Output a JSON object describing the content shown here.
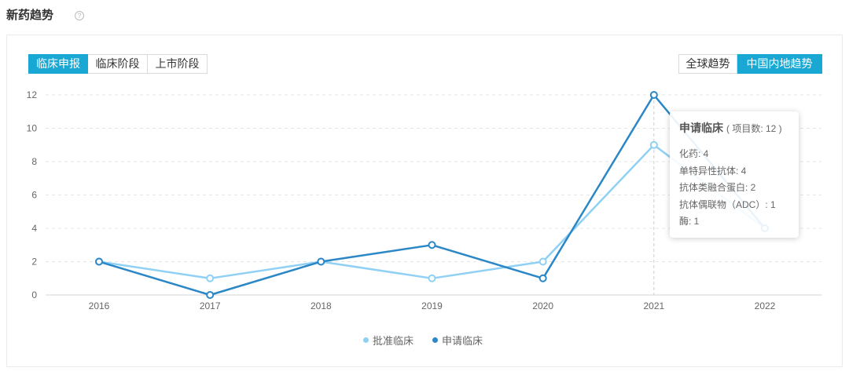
{
  "page": {
    "title": "新药趋势",
    "help_icon": "question-circle-icon"
  },
  "colors": {
    "accent": "#19a8d4",
    "border": "#d9d9d9"
  },
  "tabs_left": [
    {
      "label": "临床申报",
      "active": true
    },
    {
      "label": "临床阶段",
      "active": false
    },
    {
      "label": "上市阶段",
      "active": false
    }
  ],
  "tabs_right": [
    {
      "label": "全球趋势",
      "active": false
    },
    {
      "label": "中国内地趋势",
      "active": true
    }
  ],
  "tooltip": {
    "series_name": "申请临床",
    "count_text": "( 项目数: 12 )",
    "items": [
      "化药: 4",
      "单特异性抗体: 4",
      "抗体类融合蛋白: 2",
      "抗体偶联物（ADC）: 1",
      "酶: 1"
    ]
  },
  "chart_data": {
    "type": "line",
    "x": [
      2016,
      2017,
      2018,
      2019,
      2020,
      2021,
      2022
    ],
    "series": [
      {
        "name": "批准临床",
        "values": [
          2,
          1,
          2,
          1,
          2,
          9,
          4
        ],
        "color": "#8fd0f4"
      },
      {
        "name": "申请临床",
        "values": [
          2,
          0,
          2,
          3,
          1,
          12,
          4
        ],
        "color": "#2b87c6"
      }
    ],
    "ylim": [
      0,
      12
    ],
    "yticks": [
      0,
      2,
      4,
      6,
      8,
      10,
      12
    ],
    "grid": true,
    "legend": "bottom-center",
    "axis_pointer_x": 2021
  }
}
